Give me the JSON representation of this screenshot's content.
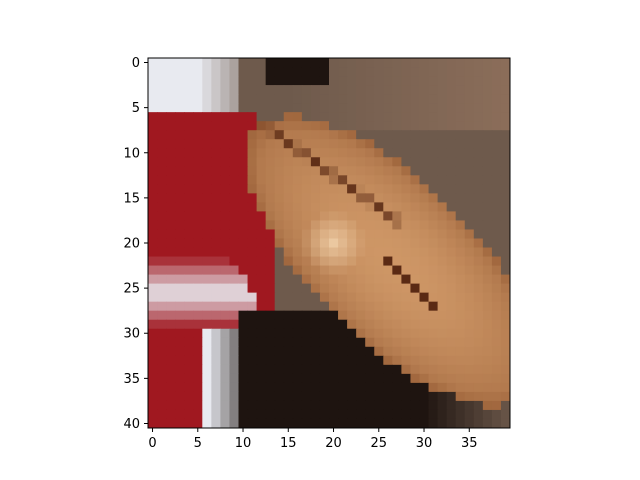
{
  "chart_data": {
    "type": "heatmap",
    "title": "",
    "xlabel": "",
    "ylabel": "",
    "image": {
      "columns": 40,
      "rows": 41,
      "description_colors": {
        "white": "#e8eaf0",
        "red": "#a01820",
        "skin": "#c88a5a",
        "skin_dark": "#9a6038",
        "crease": "#5a2a14",
        "gray_brown": "#6e5a4c",
        "dark": "#1e1410"
      }
    },
    "xlim": [
      -0.5,
      39.5
    ],
    "ylim": [
      40.5,
      -0.5
    ],
    "x_ticks": [
      0,
      5,
      10,
      15,
      20,
      25,
      30,
      35
    ],
    "y_ticks": [
      0,
      5,
      10,
      15,
      20,
      25,
      30,
      35,
      40
    ],
    "x_tick_labels": [
      "0",
      "5",
      "10",
      "15",
      "20",
      "25",
      "30",
      "35"
    ],
    "y_tick_labels": [
      "0",
      "5",
      "10",
      "15",
      "20",
      "25",
      "30",
      "35",
      "40"
    ],
    "grid": false,
    "legend": "none"
  }
}
